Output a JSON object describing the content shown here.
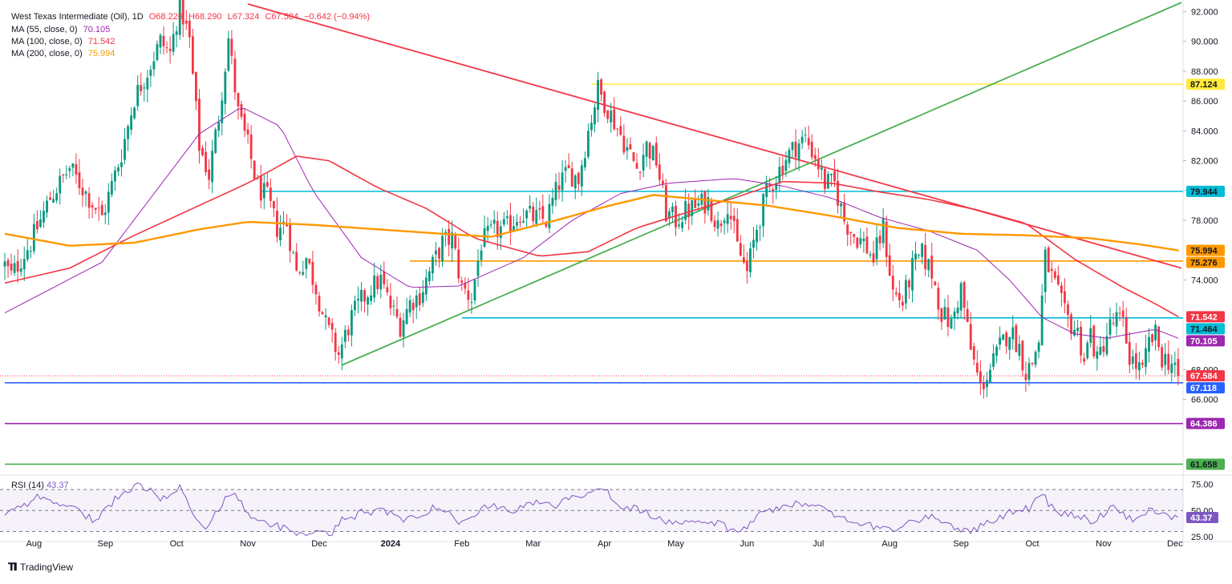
{
  "header": {
    "symbol": "West Texas Intermediate (Oil), 1D",
    "open": "O68.226",
    "high": "H68.290",
    "low": "L67.324",
    "close": "C67.584",
    "change": "−0.642 (−0.94%)",
    "ma55_label": "MA (55, close, 0)",
    "ma55_value": "70.105",
    "ma100_label": "MA (100, close, 0)",
    "ma100_value": "71.542",
    "ma200_label": "MA (200, close, 0)",
    "ma200_value": "75.994",
    "rsi_label": "RSI (14)",
    "rsi_value": "43.37"
  },
  "branding": {
    "logo_text": "TradingView"
  },
  "colors": {
    "up": "#26a69a",
    "up_body": "#089981",
    "down": "#f23645",
    "ma55": "#9c27b0",
    "ma100": "#f23645",
    "ma200": "#ff9800",
    "level_cyan": "#00bcd4",
    "level_yellow": "#ffeb3b",
    "level_orange": "#ff9800",
    "level_blue": "#2962ff",
    "level_purple": "#9c27b0",
    "level_green": "#4caf50",
    "trend_red": "#f23645",
    "trend_green": "#4caf50",
    "rsi": "#7e57c2"
  },
  "chart_data": {
    "type": "candlestick",
    "title": "West Texas Intermediate (Oil), 1D",
    "ylim": [
      61.2,
      92.5
    ],
    "y_ticks": [
      66,
      68,
      74,
      78,
      80,
      82,
      84,
      86,
      88,
      90,
      92
    ],
    "y_tick_labels": [
      "66.000",
      "68.000",
      "74.000",
      "78.000",
      "80.000",
      "82.000",
      "84.000",
      "86.000",
      "88.000",
      "90.000",
      "92.000"
    ],
    "x_labels": [
      "Aug",
      "Sep",
      "Oct",
      "Nov",
      "Dec",
      "2024",
      "Feb",
      "Mar",
      "Apr",
      "May",
      "Jun",
      "Jul",
      "Aug",
      "Sep",
      "Oct",
      "Nov",
      "Dec"
    ],
    "x_label_index": [
      9,
      31,
      53,
      75,
      97,
      119,
      141,
      163,
      185,
      207,
      229,
      251,
      273,
      295,
      317,
      339,
      361
    ],
    "total_bars": 363,
    "price_anchors": [
      [
        0,
        75.0
      ],
      [
        2,
        74.3
      ],
      [
        8,
        76.5
      ],
      [
        14,
        79.5
      ],
      [
        20,
        81.5
      ],
      [
        26,
        79.5
      ],
      [
        30,
        78.2
      ],
      [
        36,
        82.5
      ],
      [
        40,
        86.2
      ],
      [
        44,
        88.0
      ],
      [
        48,
        90.0
      ],
      [
        51,
        89.2
      ],
      [
        54,
        92.5
      ],
      [
        57,
        90.0
      ],
      [
        60,
        83.0
      ],
      [
        63,
        81.0
      ],
      [
        66,
        85.0
      ],
      [
        69,
        90.2
      ],
      [
        72,
        85.2
      ],
      [
        75,
        83.0
      ],
      [
        78,
        80.2
      ],
      [
        81,
        79.5
      ],
      [
        84,
        77.5
      ],
      [
        87,
        77.8
      ],
      [
        90,
        74.5
      ],
      [
        93,
        75.5
      ],
      [
        96,
        73.5
      ],
      [
        99,
        71.0
      ],
      [
        103,
        69.0
      ],
      [
        107,
        71.5
      ],
      [
        110,
        72.6
      ],
      [
        113,
        73.5
      ],
      [
        116,
        74.0
      ],
      [
        119,
        72.2
      ],
      [
        122,
        71.0
      ],
      [
        125,
        72.5
      ],
      [
        128,
        73.0
      ],
      [
        131,
        74.5
      ],
      [
        135,
        76.5
      ],
      [
        138,
        76.8
      ],
      [
        141,
        73.5
      ],
      [
        144,
        72.8
      ],
      [
        147,
        76.5
      ],
      [
        151,
        77.3
      ],
      [
        155,
        77.5
      ],
      [
        159,
        78.5
      ],
      [
        163,
        78.2
      ],
      [
        167,
        78.0
      ],
      [
        171,
        80.5
      ],
      [
        174,
        81.2
      ],
      [
        177,
        80.8
      ],
      [
        180,
        84.0
      ],
      [
        183,
        86.8
      ],
      [
        186,
        85.5
      ],
      [
        189,
        84.2
      ],
      [
        192,
        82.8
      ],
      [
        195,
        81.5
      ],
      [
        198,
        83.0
      ],
      [
        201,
        82.0
      ],
      [
        204,
        78.5
      ],
      [
        207,
        78.0
      ],
      [
        210,
        78.6
      ],
      [
        214,
        79.0
      ],
      [
        217,
        79.3
      ],
      [
        220,
        77.6
      ],
      [
        223,
        79.2
      ],
      [
        226,
        76.2
      ],
      [
        229,
        74.5
      ],
      [
        232,
        77.5
      ],
      [
        235,
        79.8
      ],
      [
        238,
        81.0
      ],
      [
        241,
        82.2
      ],
      [
        244,
        83.0
      ],
      [
        247,
        83.5
      ],
      [
        250,
        82.3
      ],
      [
        253,
        80.5
      ],
      [
        256,
        80.4
      ],
      [
        259,
        78.0
      ],
      [
        262,
        77.0
      ],
      [
        265,
        76.5
      ],
      [
        268,
        75.4
      ],
      [
        271,
        77.5
      ],
      [
        274,
        73.2
      ],
      [
        277,
        72.5
      ],
      [
        280,
        74.8
      ],
      [
        283,
        75.7
      ],
      [
        286,
        74.5
      ],
      [
        289,
        71.8
      ],
      [
        292,
        71.0
      ],
      [
        295,
        73.5
      ],
      [
        298,
        69.3
      ],
      [
        301,
        66.8
      ],
      [
        304,
        68.0
      ],
      [
        307,
        69.5
      ],
      [
        310,
        70.7
      ],
      [
        313,
        69.5
      ],
      [
        315,
        67.8
      ],
      [
        317,
        68.5
      ],
      [
        319,
        70.0
      ],
      [
        321,
        75.5
      ],
      [
        323,
        74.2
      ],
      [
        325,
        73.0
      ],
      [
        327,
        71.7
      ],
      [
        329,
        71.0
      ],
      [
        331,
        70.5
      ],
      [
        333,
        68.7
      ],
      [
        335,
        70.5
      ],
      [
        337,
        68.5
      ],
      [
        339,
        69.8
      ],
      [
        341,
        70.9
      ],
      [
        343,
        71.4
      ],
      [
        345,
        71.0
      ],
      [
        347,
        68.9
      ],
      [
        349,
        68.3
      ],
      [
        351,
        67.8
      ],
      [
        353,
        69.8
      ],
      [
        355,
        70.3
      ],
      [
        357,
        68.8
      ],
      [
        359,
        68.6
      ],
      [
        361,
        68.3
      ],
      [
        362,
        67.6
      ]
    ],
    "moving_averages": [
      {
        "name": "MA (55, close, 0)",
        "period": 55,
        "color": "#9c27b0",
        "last": 70.105,
        "points": [
          [
            0,
            71.8
          ],
          [
            30,
            75.2
          ],
          [
            60,
            83.8
          ],
          [
            73,
            85.6
          ],
          [
            85,
            84.3
          ],
          [
            95,
            80.0
          ],
          [
            110,
            75.5
          ],
          [
            125,
            73.5
          ],
          [
            140,
            73.6
          ],
          [
            160,
            75.5
          ],
          [
            175,
            78.0
          ],
          [
            190,
            79.8
          ],
          [
            205,
            80.5
          ],
          [
            225,
            80.8
          ],
          [
            240,
            80.3
          ],
          [
            255,
            79.5
          ],
          [
            270,
            78.2
          ],
          [
            285,
            77.3
          ],
          [
            300,
            76.0
          ],
          [
            310,
            74.0
          ],
          [
            320,
            71.5
          ],
          [
            330,
            70.4
          ],
          [
            340,
            70.1
          ],
          [
            355,
            70.7
          ],
          [
            362,
            70.1
          ]
        ]
      },
      {
        "name": "MA (100, close, 0)",
        "period": 100,
        "color": "#f23645",
        "last": 71.542,
        "points": [
          [
            0,
            73.8
          ],
          [
            20,
            74.8
          ],
          [
            40,
            77.0
          ],
          [
            60,
            79.0
          ],
          [
            75,
            80.5
          ],
          [
            90,
            82.3
          ],
          [
            100,
            82.0
          ],
          [
            115,
            80.2
          ],
          [
            130,
            78.8
          ],
          [
            145,
            76.8
          ],
          [
            165,
            75.6
          ],
          [
            180,
            75.9
          ],
          [
            195,
            77.5
          ],
          [
            210,
            78.5
          ],
          [
            225,
            79.5
          ],
          [
            240,
            80.6
          ],
          [
            255,
            80.5
          ],
          [
            270,
            79.9
          ],
          [
            285,
            79.4
          ],
          [
            300,
            78.7
          ],
          [
            315,
            77.8
          ],
          [
            330,
            75.4
          ],
          [
            345,
            73.5
          ],
          [
            355,
            72.4
          ],
          [
            362,
            71.55
          ]
        ]
      },
      {
        "name": "MA (200, close, 0)",
        "period": 200,
        "color": "#ff9800",
        "last": 75.994,
        "points": [
          [
            0,
            77.1
          ],
          [
            20,
            76.3
          ],
          [
            40,
            76.5
          ],
          [
            60,
            77.4
          ],
          [
            75,
            77.9
          ],
          [
            95,
            77.7
          ],
          [
            115,
            77.4
          ],
          [
            135,
            77.1
          ],
          [
            150,
            76.9
          ],
          [
            170,
            78.0
          ],
          [
            185,
            78.9
          ],
          [
            200,
            79.7
          ],
          [
            215,
            79.4
          ],
          [
            235,
            79.0
          ],
          [
            255,
            78.3
          ],
          [
            275,
            77.5
          ],
          [
            295,
            77.1
          ],
          [
            315,
            77.0
          ],
          [
            335,
            76.8
          ],
          [
            350,
            76.4
          ],
          [
            362,
            75.99
          ]
        ]
      }
    ],
    "horizontal_levels": [
      {
        "value": 87.124,
        "label": "87.124",
        "color": "#ffeb3b",
        "from_index": 181
      },
      {
        "value": 79.944,
        "label": "79.944",
        "color": "#00bcd4",
        "from_index": 79
      },
      {
        "value": 75.276,
        "label": "75.276",
        "color": "#ff9800",
        "from_index": 125
      },
      {
        "value": 71.464,
        "label": "71.464",
        "color": "#00bcd4",
        "from_index": 141
      },
      {
        "value": 67.118,
        "label": "67.118",
        "color": "#2962ff",
        "from_index": 0
      },
      {
        "value": 64.386,
        "label": "64.386",
        "color": "#9c27b0",
        "from_index": 0
      },
      {
        "value": 61.658,
        "label": "61.658",
        "color": "#4caf50",
        "from_index": 0
      }
    ],
    "trendlines": [
      {
        "name": "descending resistance",
        "color": "#f23645",
        "from": [
          75,
          92.5
        ],
        "to": [
          363,
          74.8
        ]
      },
      {
        "name": "ascending support",
        "color": "#4caf50",
        "from": [
          104,
          68.3
        ],
        "to": [
          363,
          92.6
        ]
      }
    ],
    "price_labels": [
      {
        "value": 87.124,
        "text": "87.124",
        "bg": "#ffeb3b",
        "fg": "#131722"
      },
      {
        "value": 79.944,
        "text": "79.944",
        "bg": "#00bcd4",
        "fg": "#131722"
      },
      {
        "value": 75.994,
        "text": "75.994",
        "bg": "#ff9800",
        "fg": "#131722"
      },
      {
        "value": 75.276,
        "text": "75.276",
        "bg": "#ff9800",
        "fg": "#131722"
      },
      {
        "value": 71.542,
        "text": "71.542",
        "bg": "#f23645",
        "fg": "#ffffff"
      },
      {
        "value": 71.464,
        "text": "71.464",
        "bg": "#00bcd4",
        "fg": "#131722"
      },
      {
        "value": 70.105,
        "text": "70.105",
        "bg": "#9c27b0",
        "fg": "#ffffff"
      },
      {
        "value": 67.584,
        "text": "67.584",
        "bg": "#f23645",
        "fg": "#ffffff"
      },
      {
        "value": 67.118,
        "text": "67.118",
        "bg": "#2962ff",
        "fg": "#ffffff"
      },
      {
        "value": 64.386,
        "text": "64.386",
        "bg": "#9c27b0",
        "fg": "#ffffff"
      },
      {
        "value": 61.658,
        "text": "61.658",
        "bg": "#4caf50",
        "fg": "#131722"
      }
    ],
    "last_price": 67.584,
    "rsi": {
      "period": 14,
      "last": 43.37,
      "ylim": [
        25,
        80
      ],
      "ticks": [
        75,
        50,
        25
      ],
      "tick_labels": [
        "75.00",
        "50.00",
        "25.00"
      ],
      "band": [
        30,
        70
      ],
      "anchors": [
        [
          0,
          45
        ],
        [
          10,
          62
        ],
        [
          20,
          55
        ],
        [
          28,
          40
        ],
        [
          36,
          68
        ],
        [
          42,
          75
        ],
        [
          48,
          62
        ],
        [
          54,
          72
        ],
        [
          58,
          45
        ],
        [
          62,
          30
        ],
        [
          66,
          52
        ],
        [
          70,
          68
        ],
        [
          74,
          52
        ],
        [
          78,
          38
        ],
        [
          84,
          35
        ],
        [
          90,
          30
        ],
        [
          96,
          28
        ],
        [
          100,
          26
        ],
        [
          104,
          40
        ],
        [
          110,
          48
        ],
        [
          116,
          50
        ],
        [
          122,
          42
        ],
        [
          128,
          45
        ],
        [
          134,
          55
        ],
        [
          140,
          40
        ],
        [
          146,
          50
        ],
        [
          152,
          55
        ],
        [
          158,
          50
        ],
        [
          164,
          58
        ],
        [
          170,
          55
        ],
        [
          176,
          62
        ],
        [
          182,
          72
        ],
        [
          186,
          68
        ],
        [
          190,
          55
        ],
        [
          196,
          50
        ],
        [
          202,
          42
        ],
        [
          208,
          35
        ],
        [
          214,
          40
        ],
        [
          220,
          38
        ],
        [
          226,
          28
        ],
        [
          232,
          45
        ],
        [
          238,
          52
        ],
        [
          244,
          58
        ],
        [
          250,
          55
        ],
        [
          256,
          45
        ],
        [
          262,
          40
        ],
        [
          268,
          35
        ],
        [
          274,
          32
        ],
        [
          280,
          40
        ],
        [
          286,
          45
        ],
        [
          292,
          35
        ],
        [
          298,
          30
        ],
        [
          304,
          40
        ],
        [
          310,
          48
        ],
        [
          316,
          52
        ],
        [
          320,
          65
        ],
        [
          324,
          50
        ],
        [
          330,
          45
        ],
        [
          336,
          40
        ],
        [
          342,
          55
        ],
        [
          348,
          40
        ],
        [
          354,
          52
        ],
        [
          358,
          47
        ],
        [
          362,
          43.37
        ]
      ]
    }
  }
}
